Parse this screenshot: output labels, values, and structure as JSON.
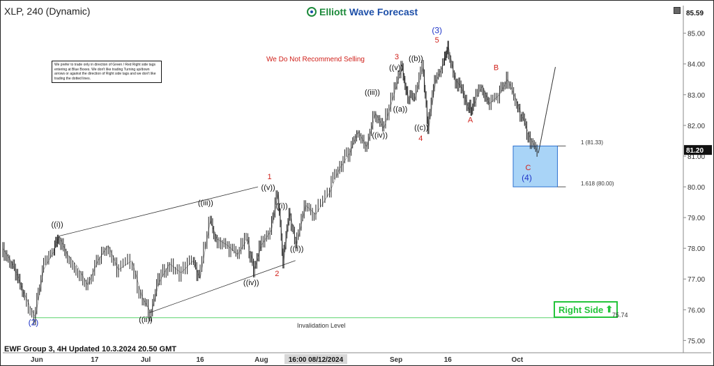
{
  "header": {
    "ticker": "XLP, 240 (Dynamic)",
    "brand": "Elliott Wave Forecast",
    "brand_prefix": "Elliott ",
    "brand_name": "Wave Forecast"
  },
  "disclaimer": "We prefer to trade only in direction of Green / Red Right side tags entering at Blue Boxes. We don't like trading Turning up/down arrows or against the direction of Right side tags and we don't like trading the dotted lines.",
  "warning": "We Do Not Recommend Selling",
  "right_side": {
    "label": "Right Side",
    "arrow": "⬆"
  },
  "invalidation": {
    "label": "Invalidation Level",
    "price": "75.74"
  },
  "blue_box": {
    "fib1": "1 (81.33)",
    "fib2": "1.618 (80.00)"
  },
  "footer": "EWF Group 3, 4H Updated 10.3.2024 20.50 GMT",
  "chart_data": {
    "type": "line",
    "title": "XLP, 240 (Dynamic)",
    "xlabel": "",
    "ylabel": "",
    "ylim": [
      74.6,
      85.9
    ],
    "y_ticks": [
      "75.00",
      "76.00",
      "77.00",
      "78.00",
      "79.00",
      "80.00",
      "81.00",
      "82.00",
      "83.00",
      "84.00",
      "85.00"
    ],
    "price_top_label": "85.59",
    "price_current_label": "81.20",
    "x_ticks": [
      {
        "label": "Jun",
        "t": 0.05
      },
      {
        "label": "17",
        "t": 0.135
      },
      {
        "label": "Jul",
        "t": 0.21
      },
      {
        "label": "16",
        "t": 0.29
      },
      {
        "label": "Aug",
        "t": 0.38
      },
      {
        "label": "16:00 08/12/2024",
        "t": 0.46,
        "highlight": true
      },
      {
        "label": "Sep",
        "t": 0.578
      },
      {
        "label": "16",
        "t": 0.654
      },
      {
        "label": "Oct",
        "t": 0.756
      }
    ],
    "price_path": [
      [
        0.0,
        78.0
      ],
      [
        0.012,
        77.6
      ],
      [
        0.022,
        77.1
      ],
      [
        0.032,
        76.5
      ],
      [
        0.048,
        75.74
      ],
      [
        0.06,
        77.3
      ],
      [
        0.075,
        77.9
      ],
      [
        0.083,
        78.4
      ],
      [
        0.095,
        77.8
      ],
      [
        0.11,
        77.4
      ],
      [
        0.125,
        76.8
      ],
      [
        0.14,
        77.6
      ],
      [
        0.155,
        78.1
      ],
      [
        0.17,
        77.3
      ],
      [
        0.19,
        77.6
      ],
      [
        0.205,
        76.4
      ],
      [
        0.218,
        75.9
      ],
      [
        0.23,
        76.9
      ],
      [
        0.245,
        77.5
      ],
      [
        0.262,
        77.2
      ],
      [
        0.28,
        77.6
      ],
      [
        0.29,
        77.0
      ],
      [
        0.305,
        78.9
      ],
      [
        0.315,
        78.3
      ],
      [
        0.33,
        78.1
      ],
      [
        0.345,
        77.8
      ],
      [
        0.36,
        78.3
      ],
      [
        0.37,
        77.3
      ],
      [
        0.38,
        78.1
      ],
      [
        0.395,
        78.6
      ],
      [
        0.405,
        79.8
      ],
      [
        0.413,
        77.6
      ],
      [
        0.422,
        79.2
      ],
      [
        0.432,
        78.1
      ],
      [
        0.445,
        79.4
      ],
      [
        0.46,
        79.1
      ],
      [
        0.48,
        79.8
      ],
      [
        0.495,
        80.6
      ],
      [
        0.51,
        81.1
      ],
      [
        0.522,
        81.8
      ],
      [
        0.535,
        81.3
      ],
      [
        0.548,
        82.4
      ],
      [
        0.56,
        81.9
      ],
      [
        0.575,
        83.0
      ],
      [
        0.587,
        83.9
      ],
      [
        0.595,
        83.0
      ],
      [
        0.605,
        82.8
      ],
      [
        0.618,
        83.9
      ],
      [
        0.626,
        81.9
      ],
      [
        0.636,
        83.4
      ],
      [
        0.648,
        84.0
      ],
      [
        0.655,
        84.55
      ],
      [
        0.665,
        83.5
      ],
      [
        0.675,
        83.2
      ],
      [
        0.685,
        82.5
      ],
      [
        0.693,
        82.7
      ],
      [
        0.705,
        83.3
      ],
      [
        0.715,
        82.7
      ],
      [
        0.73,
        83.0
      ],
      [
        0.742,
        83.5
      ],
      [
        0.755,
        82.8
      ],
      [
        0.765,
        82.2
      ],
      [
        0.775,
        81.6
      ],
      [
        0.787,
        81.1
      ]
    ],
    "projection": [
      [
        0.787,
        81.1
      ],
      [
        0.812,
        83.9
      ]
    ],
    "channel_upper": [
      [
        0.083,
        78.4
      ],
      [
        0.375,
        80.0
      ]
    ],
    "channel_lower": [
      [
        0.215,
        75.9
      ],
      [
        0.43,
        77.6
      ]
    ],
    "invalidation_value": 75.74,
    "blue_box": {
      "t0": 0.75,
      "t1": 0.815,
      "top": 81.33,
      "bottom": 80.0
    },
    "annotations": [
      {
        "text": "(2)",
        "t": 0.045,
        "v": 75.5,
        "color": "#1f35c8",
        "size": 12
      },
      {
        "text": "((i))",
        "t": 0.08,
        "v": 78.7,
        "color": "#111",
        "size": 11
      },
      {
        "text": "((ii))",
        "t": 0.21,
        "v": 75.6,
        "color": "#111",
        "size": 11
      },
      {
        "text": "((iii))",
        "t": 0.298,
        "v": 79.4,
        "color": "#111",
        "size": 11
      },
      {
        "text": "((iv))",
        "t": 0.365,
        "v": 76.8,
        "color": "#111",
        "size": 11
      },
      {
        "text": "((v))",
        "t": 0.39,
        "v": 79.9,
        "color": "#111",
        "size": 11
      },
      {
        "text": "1",
        "t": 0.392,
        "v": 80.25,
        "color": "#d0201a",
        "size": 11
      },
      {
        "text": "((i))",
        "t": 0.41,
        "v": 79.3,
        "color": "#111",
        "size": 11
      },
      {
        "text": "((ii))",
        "t": 0.432,
        "v": 77.9,
        "color": "#111",
        "size": 11
      },
      {
        "text": "2",
        "t": 0.403,
        "v": 77.1,
        "color": "#d0201a",
        "size": 11
      },
      {
        "text": "((iii))",
        "t": 0.543,
        "v": 83.0,
        "color": "#111",
        "size": 11
      },
      {
        "text": "((iv))",
        "t": 0.554,
        "v": 81.6,
        "color": "#111",
        "size": 11
      },
      {
        "text": "((v))",
        "t": 0.578,
        "v": 83.8,
        "color": "#111",
        "size": 11
      },
      {
        "text": "3",
        "t": 0.579,
        "v": 84.15,
        "color": "#d0201a",
        "size": 11
      },
      {
        "text": "((a))",
        "t": 0.584,
        "v": 82.45,
        "color": "#111",
        "size": 11
      },
      {
        "text": "((b))",
        "t": 0.607,
        "v": 84.1,
        "color": "#111",
        "size": 11
      },
      {
        "text": "((c))",
        "t": 0.615,
        "v": 81.85,
        "color": "#111",
        "size": 11
      },
      {
        "text": "4",
        "t": 0.614,
        "v": 81.5,
        "color": "#d0201a",
        "size": 11
      },
      {
        "text": "(3)",
        "t": 0.638,
        "v": 85.0,
        "color": "#1f35c8",
        "size": 12
      },
      {
        "text": "5",
        "t": 0.638,
        "v": 84.7,
        "color": "#d0201a",
        "size": 11
      },
      {
        "text": "A",
        "t": 0.687,
        "v": 82.1,
        "color": "#d0201a",
        "size": 11
      },
      {
        "text": "B",
        "t": 0.725,
        "v": 83.8,
        "color": "#d0201a",
        "size": 11
      },
      {
        "text": "C",
        "t": 0.772,
        "v": 80.55,
        "color": "#d0201a",
        "size": 11
      },
      {
        "text": "(4)",
        "t": 0.77,
        "v": 80.2,
        "color": "#1f35c8",
        "size": 12
      }
    ],
    "colors": {
      "price": "#222222",
      "wave_red": "#d0201a",
      "wave_blue": "#1f35c8",
      "box_fill": "#a9d4f7",
      "box_stroke": "#2a6fcf",
      "invalidation": "#58d36b",
      "right_side": "#23c43a",
      "brand_green": "#1d8a3b",
      "brand_blue": "#1d4fa8",
      "current_price_bg": "#111111"
    }
  }
}
